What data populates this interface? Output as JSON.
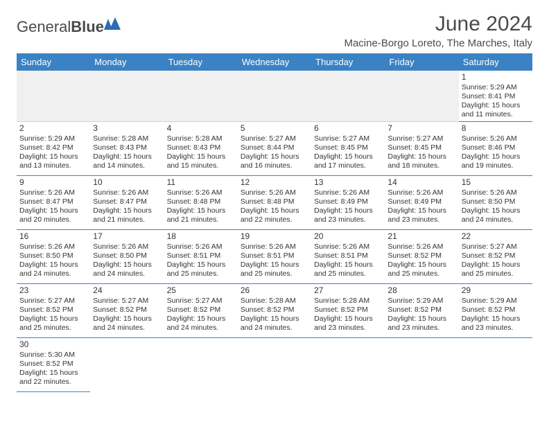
{
  "brand": {
    "part1": "General",
    "part2": "Blue"
  },
  "title": "June 2024",
  "location": "Macine-Borgo Loreto, The Marches, Italy",
  "colors": {
    "header_bg": "#3b82c4",
    "header_fg": "#ffffff",
    "divider": "#3b82c4",
    "text": "#333333",
    "logo_blue": "#2a6db0"
  },
  "weekdays": [
    "Sunday",
    "Monday",
    "Tuesday",
    "Wednesday",
    "Thursday",
    "Friday",
    "Saturday"
  ],
  "layout": {
    "first_weekday_index": 6,
    "days_in_month": 30
  },
  "days": {
    "1": {
      "sunrise": "5:29 AM",
      "sunset": "8:41 PM",
      "daylight": "15 hours and 11 minutes."
    },
    "2": {
      "sunrise": "5:29 AM",
      "sunset": "8:42 PM",
      "daylight": "15 hours and 13 minutes."
    },
    "3": {
      "sunrise": "5:28 AM",
      "sunset": "8:43 PM",
      "daylight": "15 hours and 14 minutes."
    },
    "4": {
      "sunrise": "5:28 AM",
      "sunset": "8:43 PM",
      "daylight": "15 hours and 15 minutes."
    },
    "5": {
      "sunrise": "5:27 AM",
      "sunset": "8:44 PM",
      "daylight": "15 hours and 16 minutes."
    },
    "6": {
      "sunrise": "5:27 AM",
      "sunset": "8:45 PM",
      "daylight": "15 hours and 17 minutes."
    },
    "7": {
      "sunrise": "5:27 AM",
      "sunset": "8:45 PM",
      "daylight": "15 hours and 18 minutes."
    },
    "8": {
      "sunrise": "5:26 AM",
      "sunset": "8:46 PM",
      "daylight": "15 hours and 19 minutes."
    },
    "9": {
      "sunrise": "5:26 AM",
      "sunset": "8:47 PM",
      "daylight": "15 hours and 20 minutes."
    },
    "10": {
      "sunrise": "5:26 AM",
      "sunset": "8:47 PM",
      "daylight": "15 hours and 21 minutes."
    },
    "11": {
      "sunrise": "5:26 AM",
      "sunset": "8:48 PM",
      "daylight": "15 hours and 21 minutes."
    },
    "12": {
      "sunrise": "5:26 AM",
      "sunset": "8:48 PM",
      "daylight": "15 hours and 22 minutes."
    },
    "13": {
      "sunrise": "5:26 AM",
      "sunset": "8:49 PM",
      "daylight": "15 hours and 23 minutes."
    },
    "14": {
      "sunrise": "5:26 AM",
      "sunset": "8:49 PM",
      "daylight": "15 hours and 23 minutes."
    },
    "15": {
      "sunrise": "5:26 AM",
      "sunset": "8:50 PM",
      "daylight": "15 hours and 24 minutes."
    },
    "16": {
      "sunrise": "5:26 AM",
      "sunset": "8:50 PM",
      "daylight": "15 hours and 24 minutes."
    },
    "17": {
      "sunrise": "5:26 AM",
      "sunset": "8:50 PM",
      "daylight": "15 hours and 24 minutes."
    },
    "18": {
      "sunrise": "5:26 AM",
      "sunset": "8:51 PM",
      "daylight": "15 hours and 25 minutes."
    },
    "19": {
      "sunrise": "5:26 AM",
      "sunset": "8:51 PM",
      "daylight": "15 hours and 25 minutes."
    },
    "20": {
      "sunrise": "5:26 AM",
      "sunset": "8:51 PM",
      "daylight": "15 hours and 25 minutes."
    },
    "21": {
      "sunrise": "5:26 AM",
      "sunset": "8:52 PM",
      "daylight": "15 hours and 25 minutes."
    },
    "22": {
      "sunrise": "5:27 AM",
      "sunset": "8:52 PM",
      "daylight": "15 hours and 25 minutes."
    },
    "23": {
      "sunrise": "5:27 AM",
      "sunset": "8:52 PM",
      "daylight": "15 hours and 25 minutes."
    },
    "24": {
      "sunrise": "5:27 AM",
      "sunset": "8:52 PM",
      "daylight": "15 hours and 24 minutes."
    },
    "25": {
      "sunrise": "5:27 AM",
      "sunset": "8:52 PM",
      "daylight": "15 hours and 24 minutes."
    },
    "26": {
      "sunrise": "5:28 AM",
      "sunset": "8:52 PM",
      "daylight": "15 hours and 24 minutes."
    },
    "27": {
      "sunrise": "5:28 AM",
      "sunset": "8:52 PM",
      "daylight": "15 hours and 23 minutes."
    },
    "28": {
      "sunrise": "5:29 AM",
      "sunset": "8:52 PM",
      "daylight": "15 hours and 23 minutes."
    },
    "29": {
      "sunrise": "5:29 AM",
      "sunset": "8:52 PM",
      "daylight": "15 hours and 23 minutes."
    },
    "30": {
      "sunrise": "5:30 AM",
      "sunset": "8:52 PM",
      "daylight": "15 hours and 22 minutes."
    }
  },
  "labels": {
    "sunrise": "Sunrise:",
    "sunset": "Sunset:",
    "daylight": "Daylight:"
  }
}
